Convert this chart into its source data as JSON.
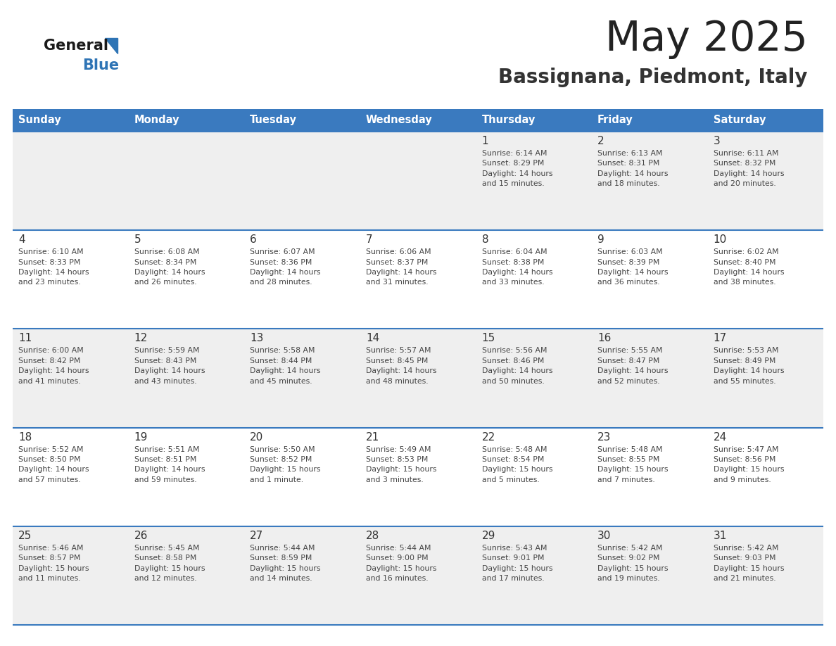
{
  "title": "May 2025",
  "subtitle": "Bassignana, Piedmont, Italy",
  "days_of_week": [
    "Sunday",
    "Monday",
    "Tuesday",
    "Wednesday",
    "Thursday",
    "Friday",
    "Saturday"
  ],
  "header_bg": "#3a7abf",
  "header_text_color": "#ffffff",
  "cell_bg_odd": "#efefef",
  "cell_bg_even": "#ffffff",
  "cell_border_color": "#3a7abf",
  "day_number_color": "#333333",
  "cell_text_color": "#444444",
  "title_color": "#222222",
  "subtitle_color": "#333333",
  "logo_general_color": "#1a1a1a",
  "logo_blue_color": "#2e74b5",
  "logo_triangle_color": "#2e74b5",
  "weeks": [
    {
      "days": [
        {
          "day": "",
          "text": ""
        },
        {
          "day": "",
          "text": ""
        },
        {
          "day": "",
          "text": ""
        },
        {
          "day": "",
          "text": ""
        },
        {
          "day": "1",
          "text": "Sunrise: 6:14 AM\nSunset: 8:29 PM\nDaylight: 14 hours\nand 15 minutes."
        },
        {
          "day": "2",
          "text": "Sunrise: 6:13 AM\nSunset: 8:31 PM\nDaylight: 14 hours\nand 18 minutes."
        },
        {
          "day": "3",
          "text": "Sunrise: 6:11 AM\nSunset: 8:32 PM\nDaylight: 14 hours\nand 20 minutes."
        }
      ]
    },
    {
      "days": [
        {
          "day": "4",
          "text": "Sunrise: 6:10 AM\nSunset: 8:33 PM\nDaylight: 14 hours\nand 23 minutes."
        },
        {
          "day": "5",
          "text": "Sunrise: 6:08 AM\nSunset: 8:34 PM\nDaylight: 14 hours\nand 26 minutes."
        },
        {
          "day": "6",
          "text": "Sunrise: 6:07 AM\nSunset: 8:36 PM\nDaylight: 14 hours\nand 28 minutes."
        },
        {
          "day": "7",
          "text": "Sunrise: 6:06 AM\nSunset: 8:37 PM\nDaylight: 14 hours\nand 31 minutes."
        },
        {
          "day": "8",
          "text": "Sunrise: 6:04 AM\nSunset: 8:38 PM\nDaylight: 14 hours\nand 33 minutes."
        },
        {
          "day": "9",
          "text": "Sunrise: 6:03 AM\nSunset: 8:39 PM\nDaylight: 14 hours\nand 36 minutes."
        },
        {
          "day": "10",
          "text": "Sunrise: 6:02 AM\nSunset: 8:40 PM\nDaylight: 14 hours\nand 38 minutes."
        }
      ]
    },
    {
      "days": [
        {
          "day": "11",
          "text": "Sunrise: 6:00 AM\nSunset: 8:42 PM\nDaylight: 14 hours\nand 41 minutes."
        },
        {
          "day": "12",
          "text": "Sunrise: 5:59 AM\nSunset: 8:43 PM\nDaylight: 14 hours\nand 43 minutes."
        },
        {
          "day": "13",
          "text": "Sunrise: 5:58 AM\nSunset: 8:44 PM\nDaylight: 14 hours\nand 45 minutes."
        },
        {
          "day": "14",
          "text": "Sunrise: 5:57 AM\nSunset: 8:45 PM\nDaylight: 14 hours\nand 48 minutes."
        },
        {
          "day": "15",
          "text": "Sunrise: 5:56 AM\nSunset: 8:46 PM\nDaylight: 14 hours\nand 50 minutes."
        },
        {
          "day": "16",
          "text": "Sunrise: 5:55 AM\nSunset: 8:47 PM\nDaylight: 14 hours\nand 52 minutes."
        },
        {
          "day": "17",
          "text": "Sunrise: 5:53 AM\nSunset: 8:49 PM\nDaylight: 14 hours\nand 55 minutes."
        }
      ]
    },
    {
      "days": [
        {
          "day": "18",
          "text": "Sunrise: 5:52 AM\nSunset: 8:50 PM\nDaylight: 14 hours\nand 57 minutes."
        },
        {
          "day": "19",
          "text": "Sunrise: 5:51 AM\nSunset: 8:51 PM\nDaylight: 14 hours\nand 59 minutes."
        },
        {
          "day": "20",
          "text": "Sunrise: 5:50 AM\nSunset: 8:52 PM\nDaylight: 15 hours\nand 1 minute."
        },
        {
          "day": "21",
          "text": "Sunrise: 5:49 AM\nSunset: 8:53 PM\nDaylight: 15 hours\nand 3 minutes."
        },
        {
          "day": "22",
          "text": "Sunrise: 5:48 AM\nSunset: 8:54 PM\nDaylight: 15 hours\nand 5 minutes."
        },
        {
          "day": "23",
          "text": "Sunrise: 5:48 AM\nSunset: 8:55 PM\nDaylight: 15 hours\nand 7 minutes."
        },
        {
          "day": "24",
          "text": "Sunrise: 5:47 AM\nSunset: 8:56 PM\nDaylight: 15 hours\nand 9 minutes."
        }
      ]
    },
    {
      "days": [
        {
          "day": "25",
          "text": "Sunrise: 5:46 AM\nSunset: 8:57 PM\nDaylight: 15 hours\nand 11 minutes."
        },
        {
          "day": "26",
          "text": "Sunrise: 5:45 AM\nSunset: 8:58 PM\nDaylight: 15 hours\nand 12 minutes."
        },
        {
          "day": "27",
          "text": "Sunrise: 5:44 AM\nSunset: 8:59 PM\nDaylight: 15 hours\nand 14 minutes."
        },
        {
          "day": "28",
          "text": "Sunrise: 5:44 AM\nSunset: 9:00 PM\nDaylight: 15 hours\nand 16 minutes."
        },
        {
          "day": "29",
          "text": "Sunrise: 5:43 AM\nSunset: 9:01 PM\nDaylight: 15 hours\nand 17 minutes."
        },
        {
          "day": "30",
          "text": "Sunrise: 5:42 AM\nSunset: 9:02 PM\nDaylight: 15 hours\nand 19 minutes."
        },
        {
          "day": "31",
          "text": "Sunrise: 5:42 AM\nSunset: 9:03 PM\nDaylight: 15 hours\nand 21 minutes."
        }
      ]
    }
  ]
}
